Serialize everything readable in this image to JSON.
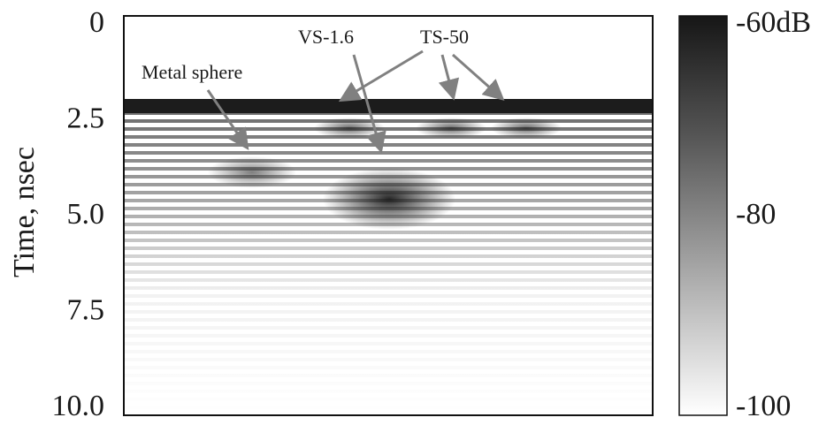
{
  "chart_data": {
    "type": "heatmap",
    "ylabel": "Time, nsec",
    "ylim": [
      0,
      10
    ],
    "yticks": [
      0,
      2.5,
      {
        "value": 5,
        "label": "5.0"
      },
      7.5,
      {
        "value": 10,
        "label": "10.0"
      }
    ],
    "colorbar": {
      "lim": [
        -100,
        -60
      ],
      "ticks": [
        {
          "value": -60,
          "label": "-60dB"
        },
        -80,
        -100
      ]
    },
    "annotations": [
      "Metal sphere",
      "VS-1.6",
      "TS-50"
    ]
  }
}
